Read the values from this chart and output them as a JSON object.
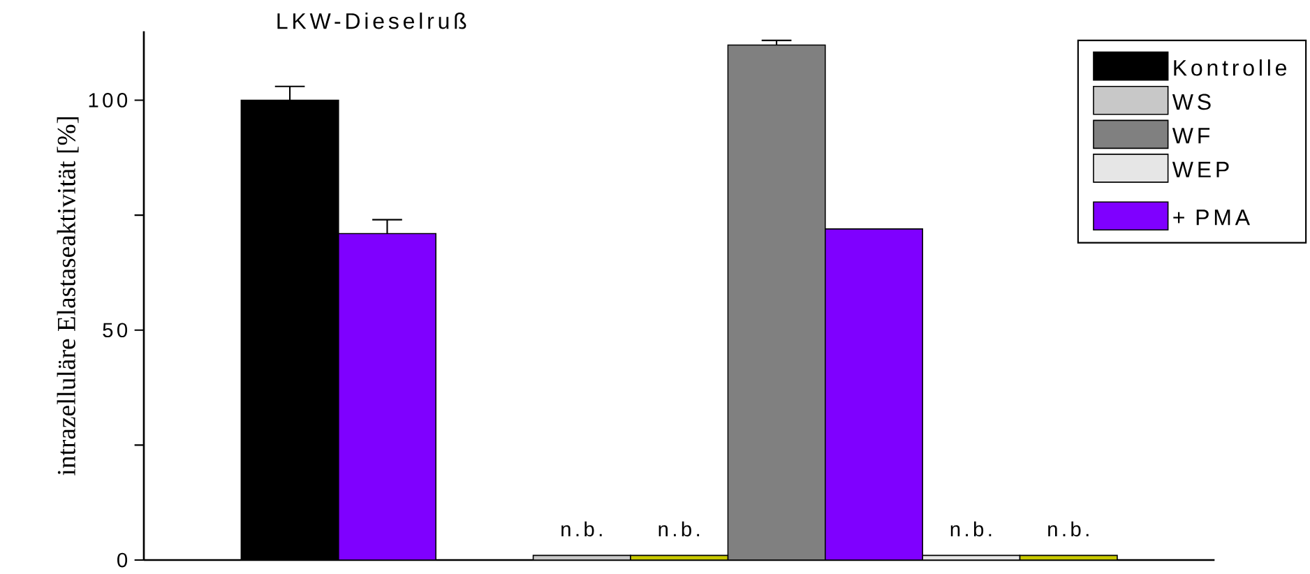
{
  "chart_data": {
    "type": "bar",
    "title": "LKW-Dieselruß",
    "ylabel": "intrazelluläre Elastaseaktivität [%]",
    "categories": [
      null,
      null,
      null,
      null,
      null,
      null,
      null,
      null,
      null,
      null,
      null
    ],
    "series": [
      {
        "name": "Kontrolle",
        "color": "#000000",
        "values": [
          null,
          100,
          null,
          null,
          null,
          null,
          null,
          null,
          null,
          null,
          null
        ],
        "errors": [
          null,
          3,
          null,
          null,
          null,
          null,
          null,
          null,
          null,
          null,
          null
        ]
      },
      {
        "name": "WS",
        "color": "#c8c8c8",
        "values": [
          null,
          null,
          null,
          null,
          1,
          null,
          null,
          null,
          null,
          null,
          null
        ],
        "value_labels": [
          null,
          null,
          null,
          null,
          "n.b.",
          null,
          null,
          null,
          null,
          null,
          null
        ]
      },
      {
        "name": "WF",
        "color": "#808080",
        "values": [
          null,
          null,
          null,
          null,
          null,
          null,
          112,
          null,
          null,
          null,
          null
        ],
        "errors": [
          null,
          null,
          null,
          null,
          null,
          null,
          1,
          null,
          null,
          null,
          null
        ]
      },
      {
        "name": "WEP",
        "color": "#e6e6e6",
        "values": [
          null,
          null,
          null,
          null,
          null,
          null,
          null,
          null,
          1,
          null,
          null
        ],
        "value_labels": [
          null,
          null,
          null,
          null,
          null,
          null,
          null,
          null,
          "n.b.",
          null,
          null
        ]
      },
      {
        "name": "+ PMA",
        "color": "#7f00ff",
        "values": [
          null,
          null,
          71,
          null,
          null,
          1,
          null,
          72,
          null,
          1,
          null
        ],
        "colors": [
          null,
          null,
          "#7f00ff",
          null,
          null,
          "#c8c800",
          null,
          "#7f00ff",
          null,
          "#c8c800",
          null
        ],
        "errors": [
          null,
          null,
          3,
          null,
          null,
          null,
          null,
          null,
          null,
          null,
          null
        ],
        "value_labels": [
          null,
          null,
          null,
          null,
          null,
          "n.b.",
          null,
          null,
          null,
          "n.b.",
          null
        ]
      }
    ],
    "ylim": [
      0,
      115
    ],
    "yticks": [
      0,
      {
        "value": 25,
        "label": null
      },
      50,
      {
        "value": 75,
        "label": null
      },
      100
    ],
    "legend": "top right"
  }
}
